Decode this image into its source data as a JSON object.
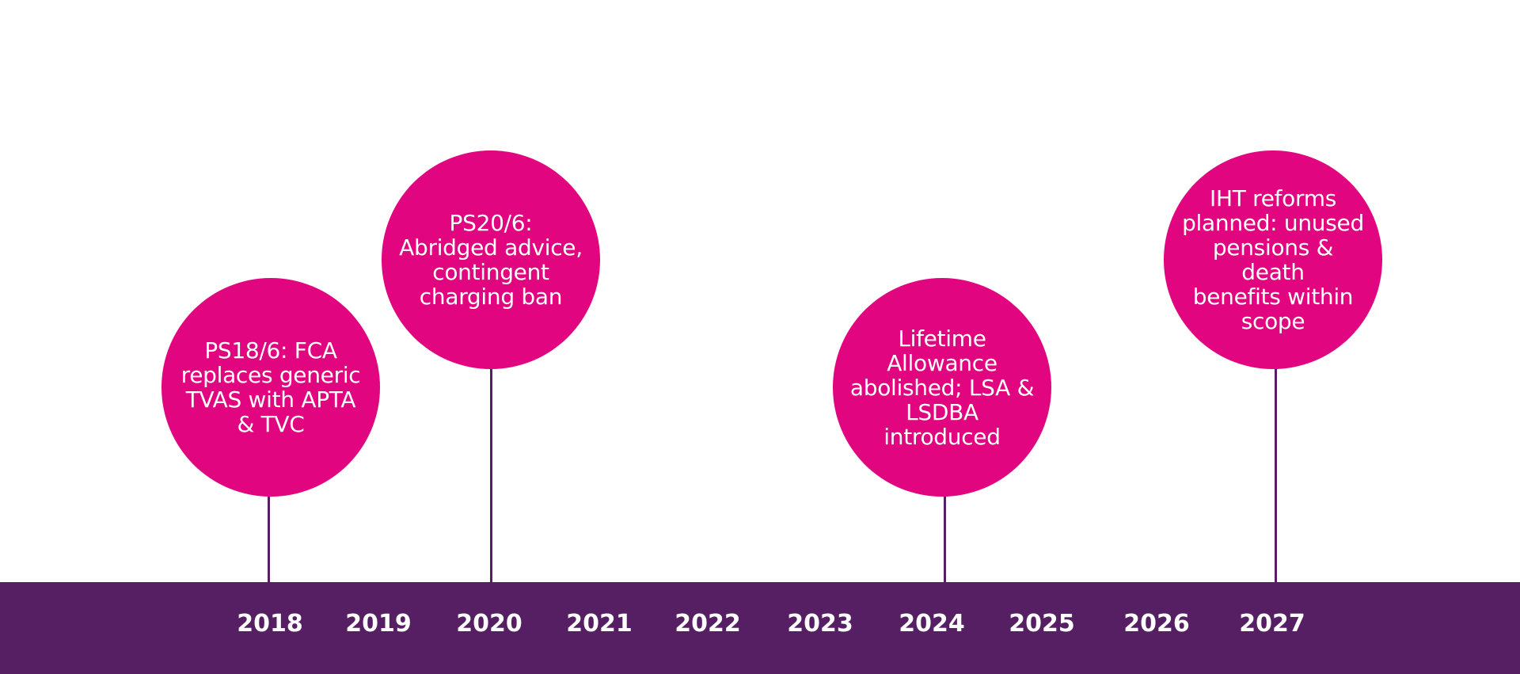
{
  "colors": {
    "background": "#ffffff",
    "timeline_bar": "#561f63",
    "bubble": "#e1067f",
    "stem": "#561f63",
    "text_on_dark": "#ffffff"
  },
  "timeline": {
    "years": [
      "2018",
      "2019",
      "2020",
      "2021",
      "2022",
      "2023",
      "2024",
      "2025",
      "2026",
      "2027"
    ]
  },
  "events": [
    {
      "year": "2018",
      "text": "PS18/6: FCA\nreplaces generic\nTVAS with APTA\n& TVC"
    },
    {
      "year": "2020",
      "text": "PS20/6:\nAbridged advice,\ncontingent\ncharging ban"
    },
    {
      "year": "2024",
      "text": "Lifetime\nAllowance\nabolished; LSA &\nLSDBA\nintroduced"
    },
    {
      "year": "2027",
      "text": "IHT reforms\nplanned: unused\npensions & death\nbenefits within\nscope"
    }
  ]
}
